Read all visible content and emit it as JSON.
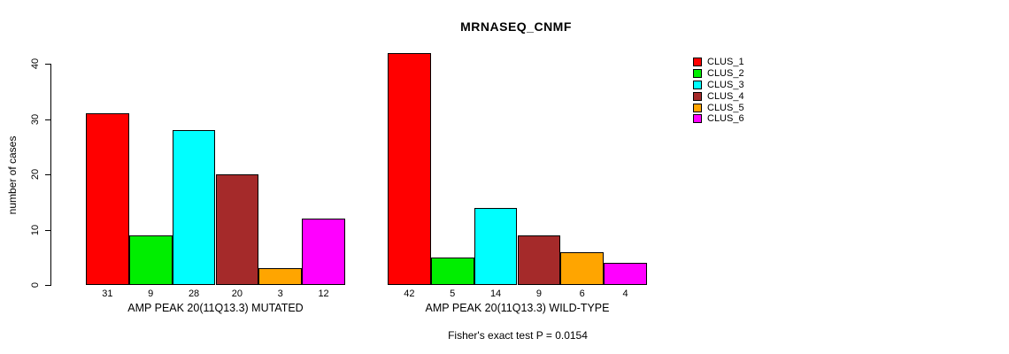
{
  "chart_data": {
    "type": "bar",
    "title": "MRNASEQ_CNMF",
    "ylabel": "number of cases",
    "xlabel": "",
    "ylim": [
      0,
      40
    ],
    "yticks": [
      0,
      10,
      20,
      30,
      40
    ],
    "grid": false,
    "legend_position": "right",
    "clusters": [
      "CLUS_1",
      "CLUS_2",
      "CLUS_3",
      "CLUS_4",
      "CLUS_5",
      "CLUS_6"
    ],
    "colors": [
      "#FF0000",
      "#00EE00",
      "#00FFFF",
      "#A52A2A",
      "#FFA500",
      "#FF00FF"
    ],
    "groups": [
      {
        "label": "AMP PEAK 20(11Q13.3) MUTATED",
        "values": [
          31,
          9,
          28,
          20,
          3,
          12
        ]
      },
      {
        "label": "AMP PEAK 20(11Q13.3) WILD-TYPE",
        "values": [
          42,
          5,
          14,
          9,
          6,
          4
        ]
      }
    ],
    "footnote": "Fisher's exact test P = 0.0154"
  }
}
